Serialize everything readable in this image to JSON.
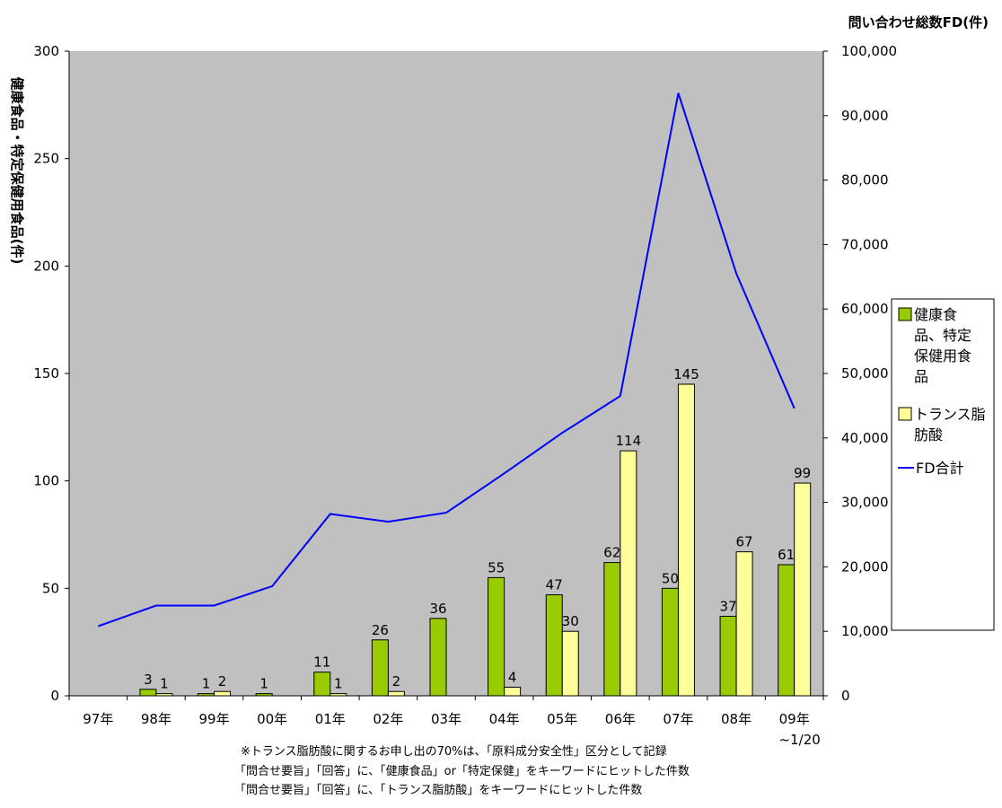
{
  "chart_data": {
    "type": "bar",
    "categories": [
      "97年",
      "98年",
      "99年",
      "00年",
      "01年",
      "02年",
      "03年",
      "04年",
      "05年",
      "06年",
      "07年",
      "08年",
      "09年"
    ],
    "category_sublabels": [
      "",
      "",
      "",
      "",
      "",
      "",
      "",
      "",
      "",
      "",
      "",
      "",
      "~1/20"
    ],
    "series": [
      {
        "name": "健康食品、特定保健用食品",
        "type": "bar",
        "axis": "left",
        "color": "#99cc00",
        "values": [
          null,
          3,
          1,
          1,
          11,
          26,
          36,
          55,
          47,
          62,
          50,
          37,
          61
        ],
        "labels": [
          "",
          "3",
          "1",
          "1",
          "11",
          "26",
          "36",
          "55",
          "47",
          "62",
          "50",
          "37",
          "61"
        ]
      },
      {
        "name": "トランス脂肪酸",
        "type": "bar",
        "axis": "left",
        "color": "#ffff99",
        "values": [
          null,
          1,
          2,
          null,
          1,
          2,
          null,
          4,
          30,
          114,
          145,
          67,
          99
        ],
        "labels": [
          "",
          "1",
          "2",
          "",
          "1",
          "2",
          "",
          "4",
          "30",
          "114",
          "145",
          "67",
          "99"
        ]
      },
      {
        "name": "FD合計",
        "type": "line",
        "axis": "right",
        "color": "#0000ff",
        "values": [
          10800,
          14000,
          14000,
          17000,
          28200,
          27000,
          28400,
          34500,
          40800,
          46500,
          93500,
          65500,
          44600
        ]
      }
    ],
    "ylabel_left": "健康食品・特定保健用食品(件)",
    "ylabel_right": "問い合わせ総数FD(件)",
    "ylim_left": [
      0,
      300
    ],
    "ylim_right": [
      0,
      100000
    ],
    "yticks_left": [
      "0",
      "50",
      "100",
      "150",
      "200",
      "250",
      "300"
    ],
    "yticks_right": [
      "0",
      "10,000",
      "20,000",
      "30,000",
      "40,000",
      "50,000",
      "60,000",
      "70,000",
      "80,000",
      "90,000",
      "100,000"
    ],
    "background": "#c0c0c0",
    "grid": false,
    "legend_position": "right",
    "notes": [
      "※トランス脂肪酸に関するお申し出の70%は、「原料成分安全性」区分として記録",
      "「問合せ要旨」「回答」に、「健康食品」or「特定保健」をキーワードにヒットした件数",
      "「問合せ要旨」「回答」に、「トランス脂肪酸」をキーワードにヒットした件数"
    ]
  }
}
